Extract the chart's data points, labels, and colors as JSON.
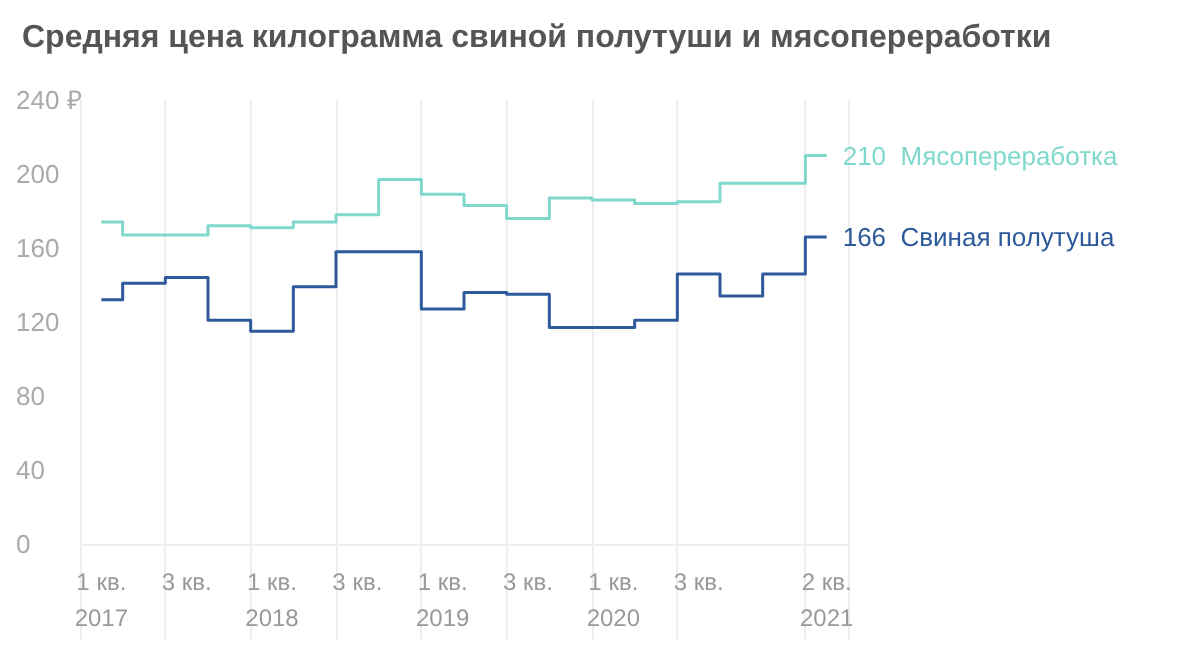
{
  "chart_data": {
    "type": "step",
    "title": "Средняя цена килограмма свиной полутуши и мясопереработки",
    "categories": [
      "1 кв.\n2017",
      null,
      "3 кв.",
      null,
      "1 кв.\n2018",
      null,
      "3 кв.",
      null,
      "1 кв.\n2019",
      null,
      "3 кв.",
      null,
      "1 кв.\n2020",
      null,
      "3 кв.",
      null,
      null,
      "2 кв.\n2021"
    ],
    "series": [
      {
        "name": "Мясопереработка",
        "color": "#7fd8cc",
        "values": [
          174,
          167,
          167,
          172,
          171,
          174,
          178,
          197,
          189,
          183,
          176,
          187,
          186,
          184,
          185,
          195,
          195,
          210
        ],
        "value_labels": [
          null,
          null,
          null,
          null,
          null,
          null,
          null,
          null,
          null,
          null,
          null,
          null,
          null,
          null,
          null,
          null,
          null,
          "210"
        ]
      },
      {
        "name": "Свиная полутуша",
        "color": "#2e5a9c",
        "values": [
          132,
          141,
          144,
          121,
          115,
          139,
          158,
          158,
          127,
          136,
          135,
          117,
          117,
          121,
          146,
          134,
          146,
          166
        ],
        "value_labels": [
          null,
          null,
          null,
          null,
          null,
          null,
          null,
          null,
          null,
          null,
          null,
          null,
          null,
          null,
          null,
          null,
          null,
          "166"
        ]
      }
    ],
    "ylim": [
      0,
      240
    ],
    "yticks": [
      0,
      40,
      80,
      120,
      160,
      200,
      {
        "value": 240,
        "label": "240 ₽"
      }
    ],
    "grid": "x",
    "legend": false,
    "marker": "none",
    "line_style": "solid"
  }
}
